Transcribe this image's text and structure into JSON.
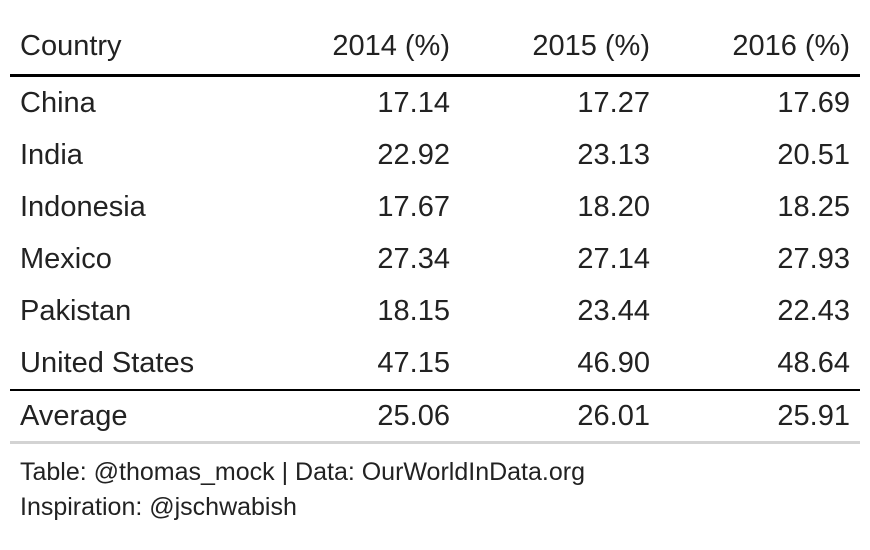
{
  "chart_data": {
    "type": "table",
    "columns": [
      "Country",
      "2014 (%)",
      "2015 (%)",
      "2016 (%)"
    ],
    "rows": [
      {
        "country": "China",
        "v2014": "17.14",
        "v2015": "17.27",
        "v2016": "17.69"
      },
      {
        "country": "India",
        "v2014": "22.92",
        "v2015": "23.13",
        "v2016": "20.51"
      },
      {
        "country": "Indonesia",
        "v2014": "17.67",
        "v2015": "18.20",
        "v2016": "18.25"
      },
      {
        "country": "Mexico",
        "v2014": "27.34",
        "v2015": "27.14",
        "v2016": "27.93"
      },
      {
        "country": "Pakistan",
        "v2014": "18.15",
        "v2015": "23.44",
        "v2016": "22.43"
      },
      {
        "country": "United States",
        "v2014": "47.15",
        "v2015": "46.90",
        "v2016": "48.64"
      }
    ],
    "summary": {
      "label": "Average",
      "v2014": "25.06",
      "v2015": "26.01",
      "v2016": "25.91"
    }
  },
  "caption": {
    "line1": "Table: @thomas_mock | Data: OurWorldInData.org",
    "line2": "Inspiration: @jschwabish"
  },
  "colors": {
    "text": "#222222",
    "rule_strong": "#000000",
    "rule_light": "#d3d3d3"
  }
}
